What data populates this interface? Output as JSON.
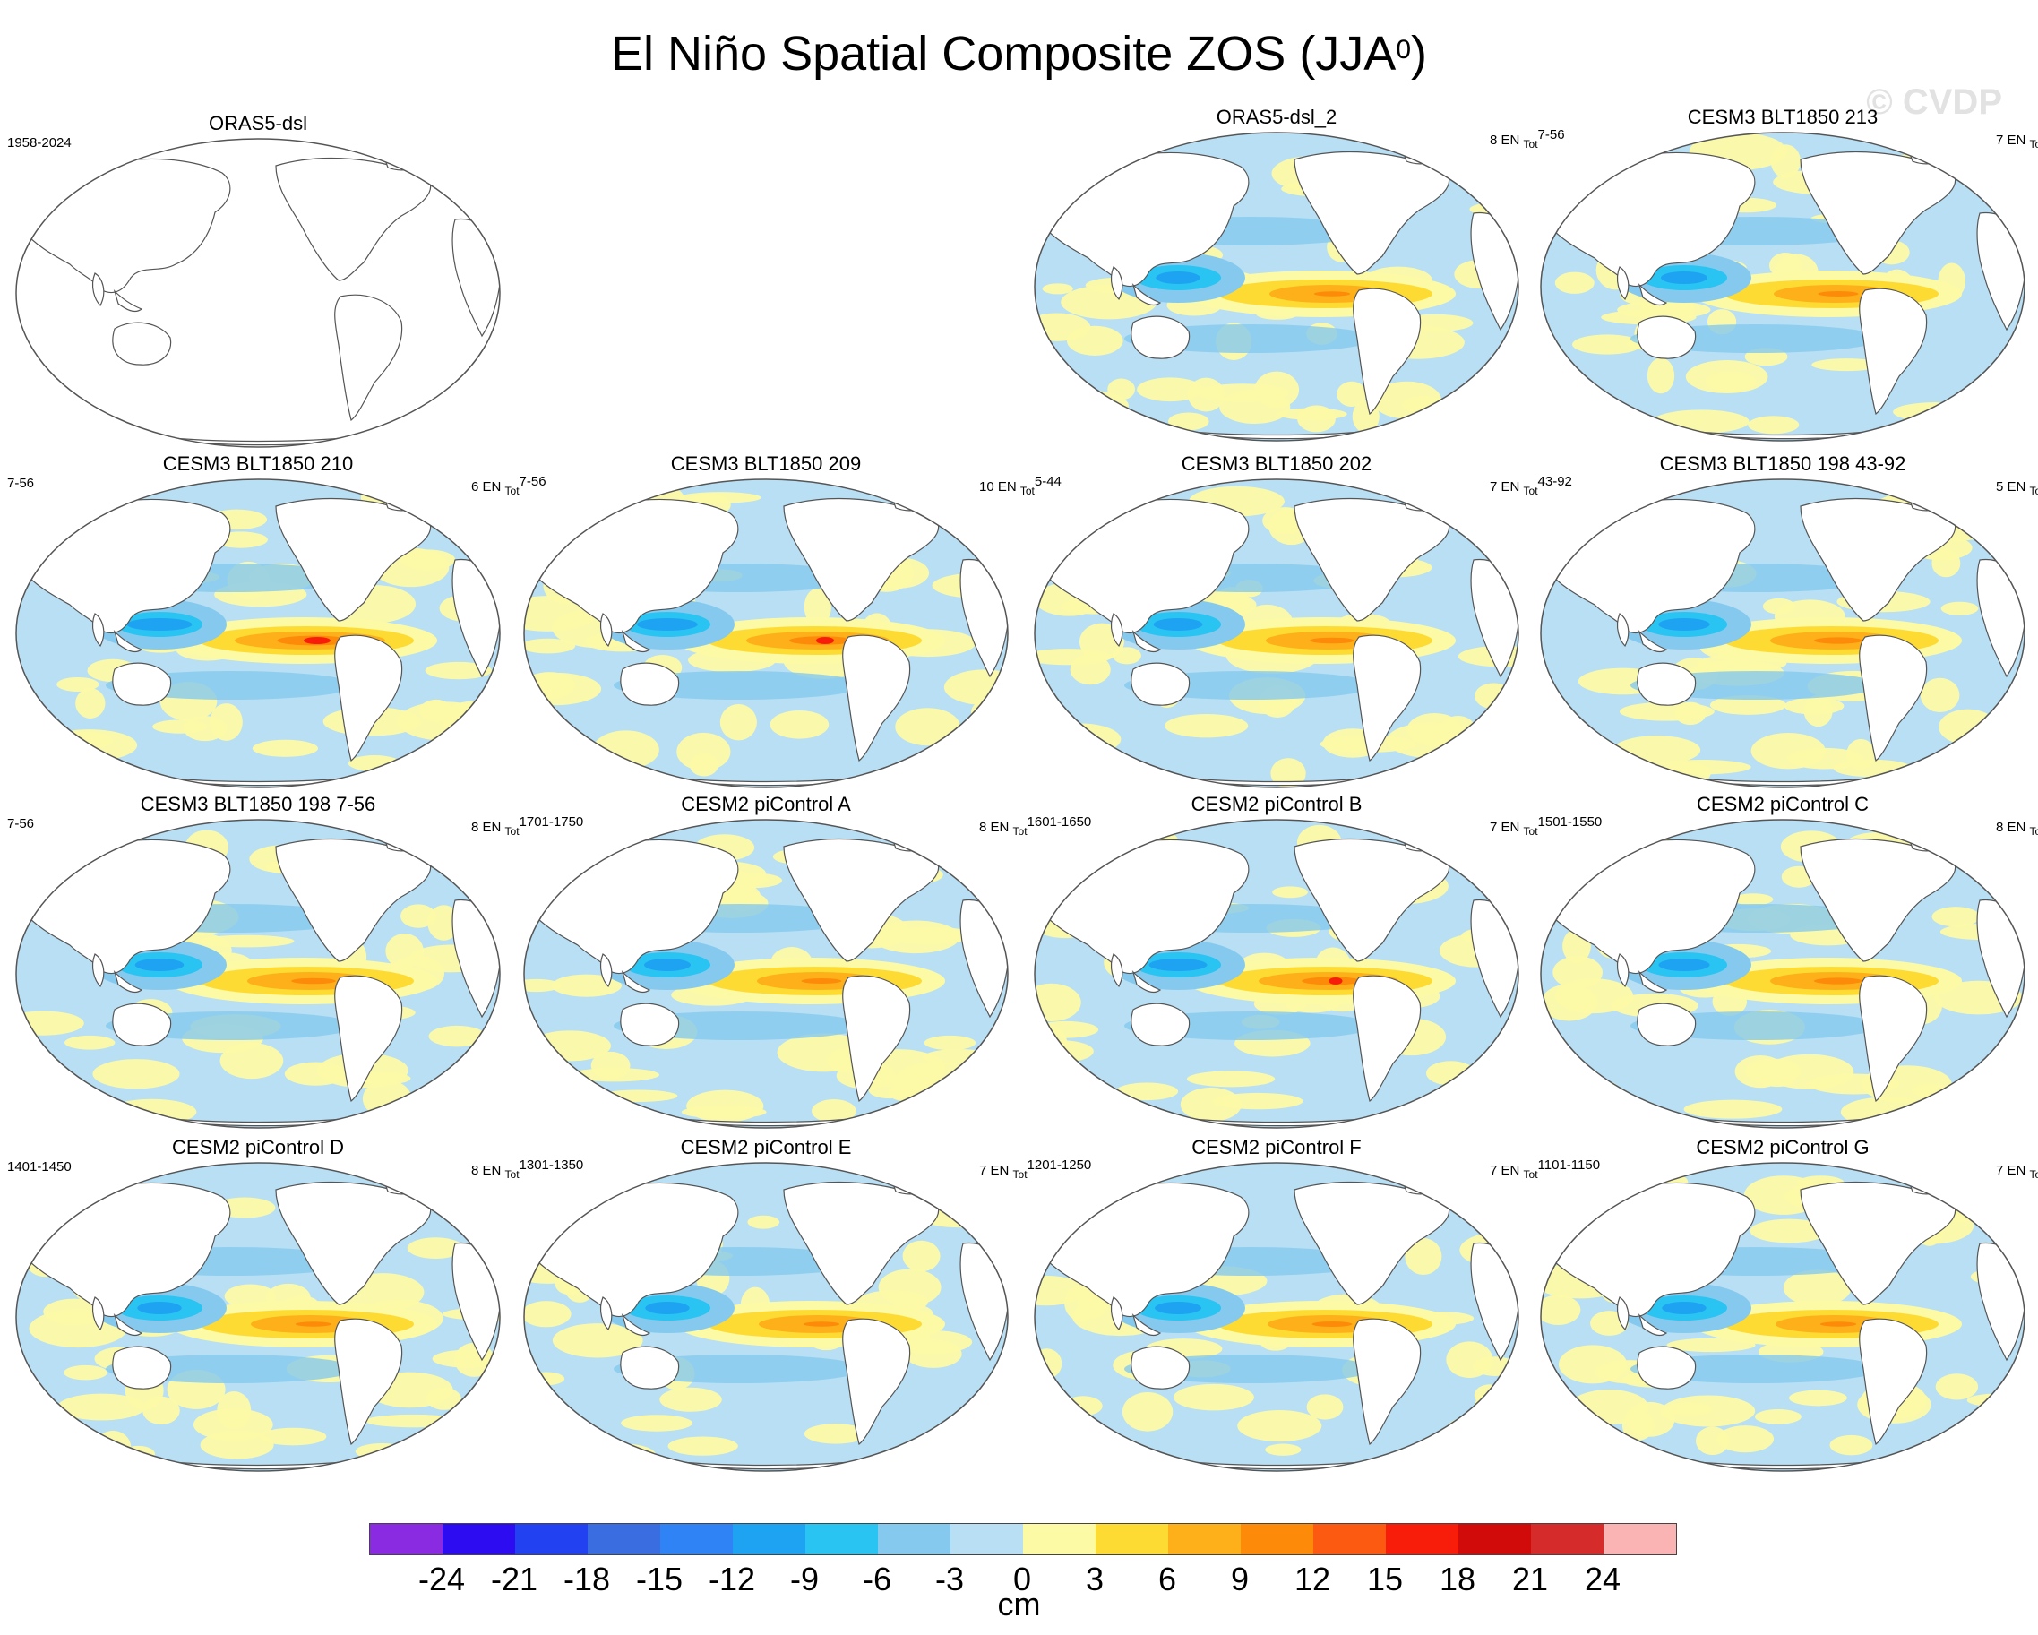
{
  "title": "El Niño Spatial Composite ZOS (JJA",
  "title_sup": "0",
  "title_close": ")",
  "watermark": "© CVDP",
  "colorbar": {
    "units": "cm",
    "labels": [
      "-24",
      "-21",
      "-18",
      "-15",
      "-12",
      "-9",
      "-6",
      "-3",
      "0",
      "3",
      "6",
      "9",
      "12",
      "15",
      "18",
      "21",
      "24"
    ],
    "colors": [
      "#8a2be2",
      "#2d0cf2",
      "#2241f0",
      "#3a6ee0",
      "#2f83f5",
      "#1ea3f2",
      "#29c4f2",
      "#86c9ee",
      "#b8dff4",
      "#fdfaa6",
      "#fddb33",
      "#fdb01a",
      "#fd8a08",
      "#fb5a10",
      "#f81d0a",
      "#d10a0a",
      "#d62b2b",
      "#fbb4b4"
    ]
  },
  "panels": [
    {
      "title": "ORAS5-dsl",
      "left": "1958-2024",
      "right": "",
      "right_sub": "",
      "empty": true,
      "strength": 0
    },
    {
      "title": "ORAS5-dsl_2",
      "left": "",
      "right": "8 EN ",
      "right_sub": "Tot",
      "right_tail": "7-56",
      "empty": false,
      "strength": 0.45
    },
    {
      "title": "CESM3 BLT1850 213",
      "left": "",
      "right": "7 EN ",
      "right_sub": "Tot",
      "right_tail": "",
      "empty": false,
      "strength": 0.5
    },
    {
      "title": "CESM3 BLT1850 210",
      "left": "7-56",
      "right": "6 EN ",
      "right_sub": "Tot",
      "right_tail": "7-56",
      "empty": false,
      "strength": 0.9
    },
    {
      "title": "CESM3 BLT1850 209",
      "left": "",
      "right": "10 EN ",
      "right_sub": "Tot",
      "right_tail": "5-44",
      "empty": false,
      "strength": 0.8
    },
    {
      "title": "CESM3 BLT1850 202",
      "left": "",
      "right": "7 EN ",
      "right_sub": "Tot",
      "right_tail": "43-92",
      "empty": false,
      "strength": 0.55
    },
    {
      "title": "CESM3 BLT1850 198 43-92",
      "left": "",
      "right": "5 EN ",
      "right_sub": "Tot",
      "right_tail": "",
      "empty": false,
      "strength": 0.6
    },
    {
      "title": "CESM3 BLT1850 198 7-56",
      "left": "7-56",
      "right": "8 EN ",
      "right_sub": "Tot",
      "right_tail": "1701-1750",
      "empty": false,
      "strength": 0.55
    },
    {
      "title": "CESM2 piControl A",
      "left": "",
      "right": "8 EN ",
      "right_sub": "Tot",
      "right_tail": "1601-1650",
      "empty": false,
      "strength": 0.5
    },
    {
      "title": "CESM2 piControl B",
      "left": "",
      "right": "7 EN ",
      "right_sub": "Tot",
      "right_tail": "1501-1550",
      "empty": false,
      "strength": 0.75
    },
    {
      "title": "CESM2 piControl C",
      "left": "",
      "right": "8 EN ",
      "right_sub": "Tot",
      "right_tail": "",
      "empty": false,
      "strength": 0.6
    },
    {
      "title": "CESM2 piControl D",
      "left": "1401-1450",
      "right": "8 EN ",
      "right_sub": "Tot",
      "right_tail": "1301-1350",
      "empty": false,
      "strength": 0.45
    },
    {
      "title": "CESM2 piControl E",
      "left": "",
      "right": "7 EN ",
      "right_sub": "Tot",
      "right_tail": "1201-1250",
      "empty": false,
      "strength": 0.45
    },
    {
      "title": "CESM2 piControl F",
      "left": "",
      "right": "7 EN ",
      "right_sub": "Tot",
      "right_tail": "1101-1150",
      "empty": false,
      "strength": 0.5
    },
    {
      "title": "CESM2 piControl G",
      "left": "",
      "right": "7 EN ",
      "right_sub": "Tot",
      "right_tail": "",
      "empty": false,
      "strength": 0.45
    }
  ]
}
